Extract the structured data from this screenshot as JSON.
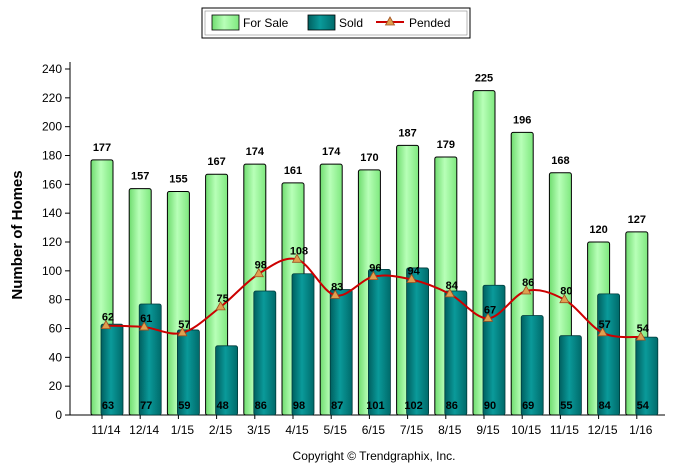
{
  "chart_data": {
    "type": "bar",
    "categories": [
      "11/14",
      "12/14",
      "1/15",
      "2/15",
      "3/15",
      "4/15",
      "5/15",
      "6/15",
      "7/15",
      "8/15",
      "9/15",
      "10/15",
      "11/15",
      "12/15",
      "1/16"
    ],
    "series": [
      {
        "name": "For Sale",
        "type": "bar",
        "color": "#99ff99",
        "values": [
          177,
          157,
          155,
          167,
          174,
          161,
          174,
          170,
          187,
          179,
          225,
          196,
          168,
          120,
          127
        ]
      },
      {
        "name": "Sold",
        "type": "bar",
        "color": "#007f7f",
        "values": [
          63,
          77,
          59,
          48,
          86,
          98,
          87,
          101,
          102,
          86,
          90,
          69,
          55,
          84,
          54
        ]
      },
      {
        "name": "Pended",
        "type": "line",
        "color": "#cc0000",
        "marker_color": "#e0a050",
        "values": [
          62,
          61,
          57,
          75,
          98,
          108,
          83,
          96,
          94,
          84,
          67,
          86,
          80,
          57,
          54
        ]
      }
    ],
    "ylabel": "Number of Homes",
    "ylim": [
      0,
      240
    ],
    "yticks": [
      0,
      20,
      40,
      60,
      80,
      100,
      120,
      140,
      160,
      180,
      200,
      220,
      240
    ],
    "legend_position": "top-center",
    "grid": false
  },
  "copyright": "Copyright © Trendgraphix, Inc."
}
